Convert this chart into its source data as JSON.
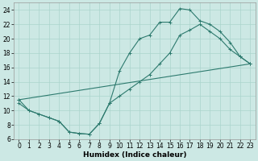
{
  "xlabel": "Humidex (Indice chaleur)",
  "bg_color": "#cce8e4",
  "line_color": "#2d7a6e",
  "grid_color": "#aad4cc",
  "xlim": [
    -0.5,
    23.5
  ],
  "ylim": [
    6,
    25
  ],
  "xticks": [
    0,
    1,
    2,
    3,
    4,
    5,
    6,
    7,
    8,
    9,
    10,
    11,
    12,
    13,
    14,
    15,
    16,
    17,
    18,
    19,
    20,
    21,
    22,
    23
  ],
  "yticks": [
    6,
    8,
    10,
    12,
    14,
    16,
    18,
    20,
    22,
    24
  ],
  "line1_x": [
    0,
    1,
    2,
    3,
    4,
    5,
    6,
    7,
    8,
    9,
    10,
    11,
    12,
    13,
    14,
    15,
    16,
    17,
    18,
    19,
    20,
    21,
    22,
    23
  ],
  "line1_y": [
    11,
    10,
    9.5,
    9,
    8.5,
    7,
    6.8,
    6.7,
    8.2,
    11,
    15.5,
    18,
    20,
    20.5,
    22.3,
    22.3,
    24.2,
    24.0,
    22.5,
    22.0,
    21.0,
    19.5,
    17.5,
    16.5
  ],
  "line2_x": [
    0,
    1,
    2,
    3,
    4,
    5,
    6,
    7,
    8,
    9,
    10,
    11,
    12,
    13,
    14,
    15,
    16,
    17,
    18,
    19,
    20,
    21,
    22,
    23
  ],
  "line2_y": [
    11.5,
    10,
    9.5,
    9,
    8.5,
    7,
    6.8,
    6.7,
    8.2,
    11,
    12,
    13,
    14,
    15,
    16.5,
    18,
    20.5,
    21.2,
    22.0,
    21.0,
    20.0,
    18.5,
    17.5,
    16.5
  ],
  "line3_x": [
    0,
    23
  ],
  "line3_y": [
    11.5,
    16.5
  ],
  "tick_fontsize": 5.5,
  "xlabel_fontsize": 6.5
}
